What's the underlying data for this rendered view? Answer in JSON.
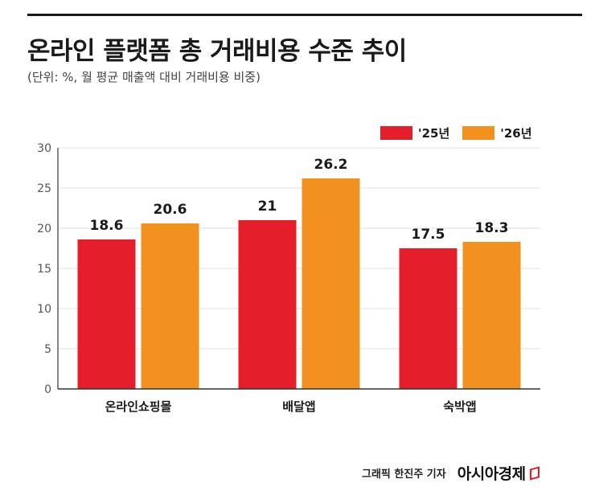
{
  "header": {
    "title": "온라인 플랫폼 총 거래비용 수준 추이",
    "subtitle": "(단위: %, 월 평균 매출액 대비 거래비용 비중)"
  },
  "legend": [
    {
      "label": "'25년",
      "color": "#e41f2b"
    },
    {
      "label": "'26년",
      "color": "#f29020"
    }
  ],
  "footer": {
    "credit": "그래픽  한진주 기자",
    "brand": "아시아경제"
  },
  "chart_data": {
    "type": "bar",
    "categories": [
      "온라인쇼핑몰",
      "배달앱",
      "숙박앱"
    ],
    "series": [
      {
        "name": "'25년",
        "values": [
          18.6,
          21,
          17.5
        ],
        "color": "#e41f2b"
      },
      {
        "name": "'26년",
        "values": [
          20.6,
          26.2,
          18.3
        ],
        "color": "#f29020"
      }
    ],
    "ylim": [
      0,
      30
    ],
    "yticks": [
      0,
      5,
      10,
      15,
      20,
      25,
      30
    ],
    "grid": true,
    "legend_position": "top-right"
  }
}
